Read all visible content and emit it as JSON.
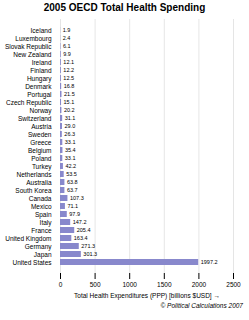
{
  "chart_data": {
    "type": "bar",
    "orientation": "horizontal",
    "title": "2005 OECD Total Health Spending",
    "xlabel": "Total Health Expenditures (PPP) [billions $USD]",
    "annotations": [
      "© Political Calculations 2007"
    ],
    "categories": [
      "United States",
      "Japan",
      "Germany",
      "United Kingdom",
      "France",
      "Italy",
      "Spain",
      "Mexico",
      "Canada",
      "South Korea",
      "Australia",
      "Netherlands",
      "Turkey",
      "Poland",
      "Belgium",
      "Greece",
      "Sweden",
      "Austria",
      "Switzerland",
      "Norway",
      "Czech Republic",
      "Portugal",
      "Denmark",
      "Hungary",
      "Finland",
      "Ireland",
      "New Zealand",
      "Slovak Republic",
      "Luxembourg",
      "Iceland"
    ],
    "values": [
      1997.2,
      301.3,
      271.3,
      163.4,
      205.4,
      147.2,
      97.9,
      71.1,
      107.3,
      63.7,
      63.8,
      53.5,
      42.2,
      33.1,
      35.4,
      33.1,
      26.3,
      29.0,
      31.1,
      20.2,
      15.1,
      21.5,
      16.8,
      12.5,
      12.2,
      12.1,
      9.9,
      6.1,
      2.4,
      1.9
    ],
    "value_labels": [
      "1997.2",
      "301.3",
      "271.3",
      "163.4",
      "205.4",
      "147.2",
      "97.9",
      "71.1",
      "107.3",
      "63.7",
      "63.8",
      "53.5",
      "42.2",
      "33.1",
      "35.4",
      "33.1",
      "26.3",
      "29.0",
      "31.1",
      "20.2",
      "15.1",
      "21.5",
      "16.8",
      "12.5",
      "12.2",
      "12.1",
      "9.9",
      "6.1",
      "2.4",
      "1.9"
    ],
    "data_labels": true,
    "color": "#8888cc",
    "xlim": [
      0,
      2500
    ],
    "xticks": [
      0,
      500,
      1000,
      1500,
      2000,
      2500
    ],
    "grid": true
  }
}
